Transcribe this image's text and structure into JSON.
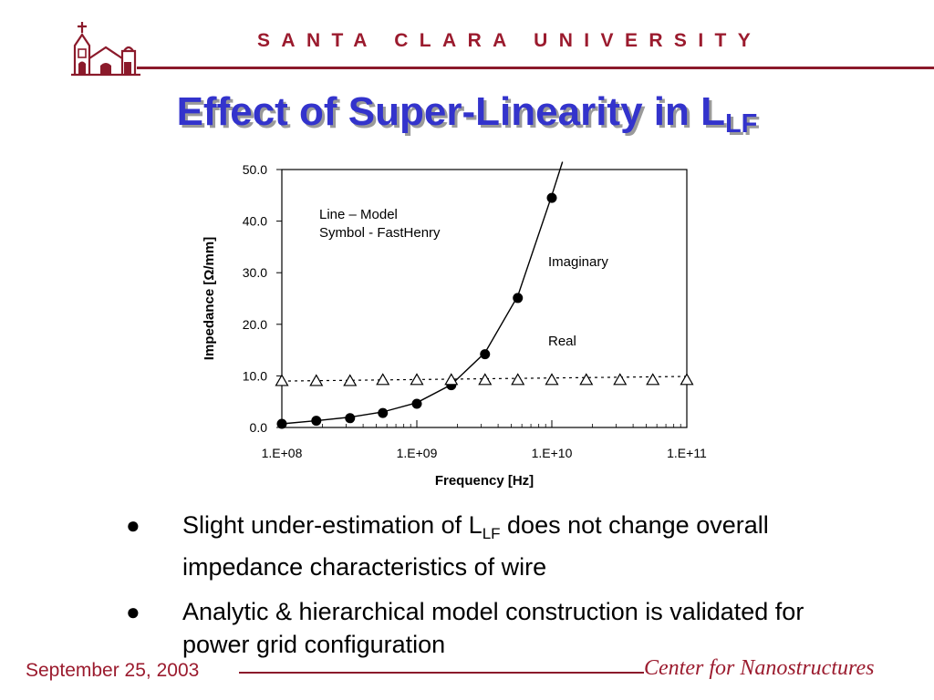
{
  "header": {
    "university": "SANTA CLARA UNIVERSITY",
    "logo_icon": "mission-church-icon",
    "accent_color": "#9b1b2e"
  },
  "slide": {
    "title_main": "Effect of Super-Linearity in L",
    "title_sub": "LF",
    "title_color": "#3333cc"
  },
  "bullets": [
    {
      "pre": "Slight under-estimation of L",
      "sub": "LF",
      "post": " does not change overall impedance characteristics of wire"
    },
    {
      "pre": "Analytic & hierarchical model construction is validated for power grid configuration",
      "sub": "",
      "post": ""
    }
  ],
  "footer": {
    "date": "September 25, 2003",
    "center": "Center for Nanostructures"
  },
  "chart_data": {
    "type": "scatter",
    "xscale": "log",
    "xlim": [
      100000000,
      100000000000
    ],
    "ylim": [
      0,
      50
    ],
    "xlabel": "Frequency [Hz]",
    "ylabel": "Impedance [Ω/mm]",
    "xticks": [
      "1.E+08",
      "1.E+09",
      "1.E+10",
      "1.E+11"
    ],
    "yticks": [
      "0.0",
      "10.0",
      "20.0",
      "30.0",
      "40.0",
      "50.0"
    ],
    "legend_lines": [
      "Line – Model",
      "Symbol - FastHenry"
    ],
    "annotations": [
      "Imaginary",
      "Real"
    ],
    "series": [
      {
        "name": "Imaginary",
        "marker": "filled-circle",
        "model_line": "solid",
        "model_x": [
          100000000,
          180000000,
          320000000,
          560000000,
          1000000000,
          1800000000,
          3200000000,
          5600000000,
          10000000000,
          12000000000
        ],
        "model_y": [
          0.7,
          1.3,
          2.0,
          3.0,
          4.8,
          8.3,
          14.5,
          25.5,
          45.0,
          51.5
        ],
        "x": [
          100000000,
          180000000,
          320000000,
          560000000,
          1000000000,
          1800000000,
          3200000000,
          5600000000,
          10000000000
        ],
        "y": [
          0.7,
          1.3,
          1.8,
          2.8,
          4.6,
          8.2,
          14.2,
          25.1,
          44.5
        ]
      },
      {
        "name": "Real",
        "marker": "open-triangle",
        "model_line": "dotted",
        "model_x": [
          100000000,
          100000000000
        ],
        "model_y": [
          9.0,
          9.9
        ],
        "x": [
          100000000,
          180000000,
          320000000,
          560000000,
          1000000000,
          1800000000,
          3200000000,
          5600000000,
          10000000000,
          18000000000,
          32000000000,
          56000000000,
          100000000000
        ],
        "y": [
          9.0,
          9.0,
          9.0,
          9.2,
          9.2,
          9.2,
          9.2,
          9.2,
          9.2,
          9.2,
          9.2,
          9.2,
          9.2
        ]
      }
    ]
  }
}
